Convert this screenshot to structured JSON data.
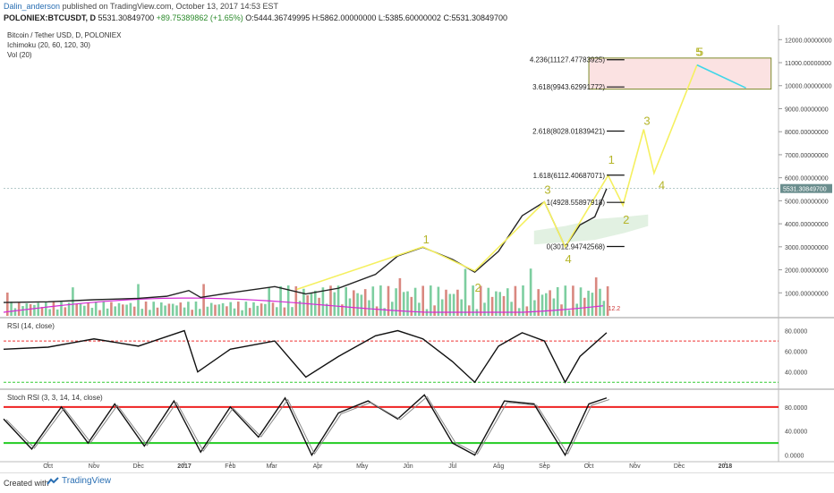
{
  "header": {
    "author": "Dalin_anderson",
    "published": "published on TradingView.com, October 13, 2017 14:53 EST",
    "symbol": "POLONIEX:BTCUSDT, D",
    "price": "5531.30849700",
    "change": "+89.75389862 (+1.65%)",
    "ohlc": "O:5444.36749995 H:5862.00000000 L:5385.60000002 C:5531.30849700"
  },
  "footer": {
    "created_with": "Created with",
    "brand": "TradingView"
  },
  "chart_data": [
    {
      "type": "line",
      "title": "Bitcoin / Tether USD, D, POLONIEX",
      "indicators": [
        "Ichimoku (20, 60, 120, 30)",
        "Vol (20)"
      ],
      "x_ticks": [
        "Oct",
        "Nov",
        "Dec",
        "2017",
        "Feb",
        "Mar",
        "Apr",
        "May",
        "Jun",
        "Jul",
        "Aug",
        "Sep",
        "Oct",
        "Nov",
        "Dec",
        "2018"
      ],
      "y_ticks": [
        "12000.00000000",
        "11000.00000000",
        "10000.00000000",
        "9000.00000000",
        "8000.00000000",
        "7000.00000000",
        "6000.00000000",
        "5000.00000000",
        "4000.00000000",
        "3000.00000000",
        "2000.00000000",
        "1000.00000000"
      ],
      "ylim": [
        0,
        12400
      ],
      "last_price_label": "5531.30849700",
      "price_series": {
        "x": [
          "2016-09-01",
          "2016-10-01",
          "2016-11-01",
          "2016-12-01",
          "2016-12-20",
          "2017-01-04",
          "2017-01-12",
          "2017-02-01",
          "2017-03-03",
          "2017-03-24",
          "2017-04-15",
          "2017-05-10",
          "2017-05-25",
          "2017-06-11",
          "2017-07-01",
          "2017-07-16",
          "2017-08-01",
          "2017-08-17",
          "2017-09-01",
          "2017-09-15",
          "2017-09-25",
          "2017-10-05",
          "2017-10-13"
        ],
        "y": [
          580,
          610,
          700,
          760,
          850,
          1100,
          800,
          1000,
          1270,
          950,
          1200,
          1800,
          2600,
          2980,
          2450,
          1900,
          2800,
          4350,
          4950,
          3000,
          3950,
          4300,
          5531
        ]
      },
      "fib_levels": [
        {
          "label": "4.236(11127.47783925)",
          "value": 11127.48
        },
        {
          "label": "3.618(9943.62991772)",
          "value": 9943.63
        },
        {
          "label": "2.618(8028.01839421)",
          "value": 8028.02
        },
        {
          "label": "1.618(6112.40687071)",
          "value": 6112.41
        },
        {
          "label": "1(4928.55897918)",
          "value": 4928.56
        },
        {
          "label": "0(3012.94742568)",
          "value": 3012.95
        }
      ],
      "wave_labels_primary": [
        {
          "label": "1",
          "x": "2017-06-11",
          "y": 3150
        },
        {
          "label": "2",
          "x": "2017-07-16",
          "y": 1050
        },
        {
          "label": "3",
          "x": "2017-09-01",
          "y": 5300
        },
        {
          "label": "4",
          "x": "2017-09-15",
          "y": 2300
        },
        {
          "label": "5",
          "x": "2017-12-12",
          "y": 11300
        }
      ],
      "wave_labels_secondary": [
        {
          "label": "1",
          "x": "2017-10-14",
          "y": 6600
        },
        {
          "label": "2",
          "x": "2017-10-24",
          "y": 4000
        },
        {
          "label": "3",
          "x": "2017-11-07",
          "y": 8300
        },
        {
          "label": "4",
          "x": "2017-11-17",
          "y": 5500
        },
        {
          "label": "5",
          "x": "2017-12-13",
          "y": 11300
        }
      ],
      "elliott_path": {
        "x": [
          "2017-03-18",
          "2017-06-11",
          "2017-07-16",
          "2017-09-01",
          "2017-09-15",
          "2017-10-14",
          "2017-10-24",
          "2017-11-07",
          "2017-11-14",
          "2017-12-13"
        ],
        "y": [
          1150,
          3000,
          1950,
          4950,
          3000,
          6100,
          4800,
          8100,
          6200,
          10900
        ]
      },
      "projection_line": {
        "x": [
          "2017-12-13",
          "2018-01-15"
        ],
        "y": [
          10900,
          9900
        ]
      },
      "target_zone": {
        "x": [
          "2017-10-01",
          "2018-02-01"
        ],
        "y": [
          9850,
          11200
        ]
      },
      "volume_label": "12.2"
    },
    {
      "type": "line",
      "title": "RSI (14, close)",
      "y_ticks": [
        "80.0000",
        "60.0000",
        "40.0000"
      ],
      "levels": [
        70,
        30
      ],
      "x": [
        "2016-09-01",
        "2016-10-01",
        "2016-11-01",
        "2016-12-01",
        "2017-01-01",
        "2017-01-10",
        "2017-02-01",
        "2017-03-03",
        "2017-03-24",
        "2017-04-15",
        "2017-05-10",
        "2017-05-25",
        "2017-06-11",
        "2017-07-01",
        "2017-07-16",
        "2017-08-01",
        "2017-08-17",
        "2017-09-01",
        "2017-09-15",
        "2017-09-25",
        "2017-10-13"
      ],
      "values": [
        62,
        64,
        72,
        65,
        80,
        40,
        62,
        70,
        35,
        55,
        75,
        80,
        72,
        50,
        30,
        65,
        78,
        70,
        30,
        55,
        78
      ]
    },
    {
      "type": "line",
      "title": "Stoch RSI (3, 3, 14, 14, close)",
      "y_ticks": [
        "80.0000",
        "40.0000",
        "0.0000"
      ],
      "levels": [
        80,
        20
      ],
      "x": [
        "2016-09-01",
        "2016-09-20",
        "2016-10-10",
        "2016-10-28",
        "2016-11-15",
        "2016-12-05",
        "2016-12-25",
        "2017-01-12",
        "2017-02-01",
        "2017-02-20",
        "2017-03-10",
        "2017-03-28",
        "2017-04-15",
        "2017-05-05",
        "2017-05-25",
        "2017-06-12",
        "2017-07-01",
        "2017-07-16",
        "2017-08-05",
        "2017-08-25",
        "2017-09-15",
        "2017-10-01",
        "2017-10-13"
      ],
      "values": [
        60,
        10,
        80,
        20,
        85,
        15,
        90,
        5,
        80,
        30,
        95,
        0,
        70,
        90,
        60,
        100,
        20,
        0,
        90,
        85,
        0,
        85,
        95
      ]
    }
  ]
}
